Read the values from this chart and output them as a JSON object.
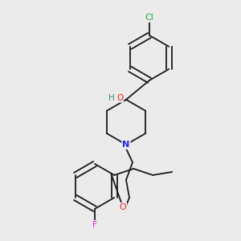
{
  "background_color": "#ebebeb",
  "bond_color": "#1a1a1a",
  "atom_colors": {
    "Cl": "#22aa44",
    "O": "#ee2222",
    "H": "#448888",
    "N": "#2222ee",
    "F": "#ee22ee"
  },
  "figsize": [
    3.0,
    3.0
  ],
  "dpi": 100
}
